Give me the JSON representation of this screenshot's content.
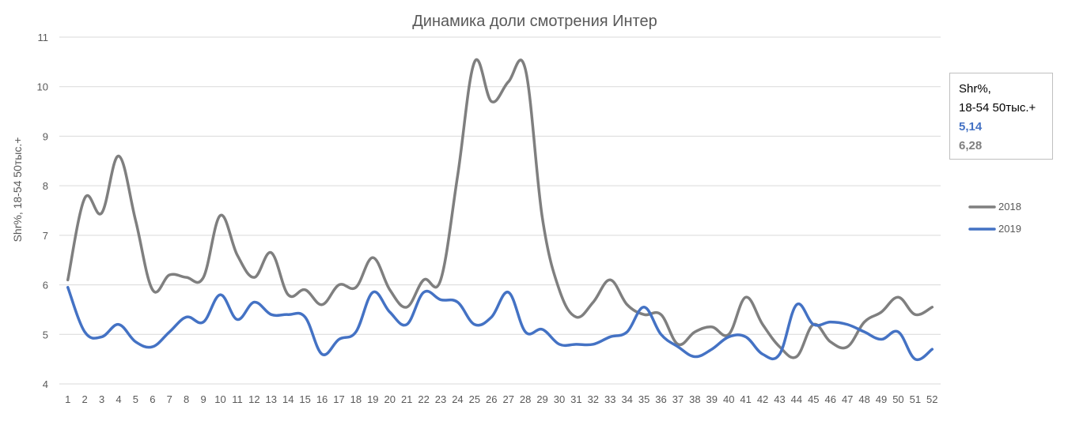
{
  "chart_data": {
    "type": "line",
    "title": "Динамика доли смотрения Интер",
    "xlabel": "",
    "ylabel": "Shr%, 18-54 50тыс.+",
    "ylim": [
      4,
      11
    ],
    "yticks": [
      "4",
      "5",
      "6",
      "7",
      "8",
      "9",
      "10",
      "11"
    ],
    "x": [
      "1",
      "2",
      "3",
      "4",
      "5",
      "6",
      "7",
      "8",
      "9",
      "10",
      "11",
      "12",
      "13",
      "14",
      "15",
      "16",
      "17",
      "18",
      "19",
      "20",
      "21",
      "22",
      "23",
      "24",
      "25",
      "26",
      "27",
      "28",
      "29",
      "30",
      "31",
      "32",
      "33",
      "34",
      "35",
      "36",
      "37",
      "38",
      "39",
      "40",
      "41",
      "42",
      "43",
      "44",
      "45",
      "46",
      "47",
      "48",
      "49",
      "50",
      "51",
      "52"
    ],
    "grid": true,
    "legend_position": "right",
    "series": [
      {
        "name": "2018",
        "color": "#7f7f7f",
        "values": [
          6.1,
          7.75,
          7.45,
          8.6,
          7.3,
          5.9,
          6.2,
          6.15,
          6.15,
          7.4,
          6.6,
          6.15,
          6.65,
          5.8,
          5.9,
          5.6,
          6.0,
          5.95,
          6.55,
          5.9,
          5.55,
          6.1,
          6.1,
          8.2,
          10.5,
          9.7,
          10.1,
          10.35,
          7.35,
          5.9,
          5.35,
          5.65,
          6.1,
          5.6,
          5.4,
          5.4,
          4.8,
          5.05,
          5.15,
          5.0,
          5.75,
          5.2,
          4.75,
          4.55,
          5.2,
          4.85,
          4.75,
          5.25,
          5.45,
          5.75,
          5.4,
          5.55
        ]
      },
      {
        "name": "2019",
        "color": "#4472c4",
        "values": [
          5.95,
          5.05,
          4.95,
          5.2,
          4.85,
          4.75,
          5.05,
          5.35,
          5.25,
          5.8,
          5.3,
          5.65,
          5.4,
          5.4,
          5.35,
          4.6,
          4.9,
          5.05,
          5.85,
          5.45,
          5.2,
          5.85,
          5.7,
          5.65,
          5.2,
          5.35,
          5.85,
          5.05,
          5.1,
          4.8,
          4.8,
          4.8,
          4.95,
          5.05,
          5.55,
          5.0,
          4.75,
          4.55,
          4.7,
          4.95,
          4.95,
          4.6,
          4.6,
          5.6,
          5.2,
          5.25,
          5.2,
          5.05,
          4.9,
          5.05,
          4.5,
          4.7
        ]
      }
    ]
  },
  "info_box": {
    "line1": "Shr%,",
    "line2": "18-54 50тыс.+",
    "value_2019": "5,14",
    "value_2018": "6,28"
  }
}
